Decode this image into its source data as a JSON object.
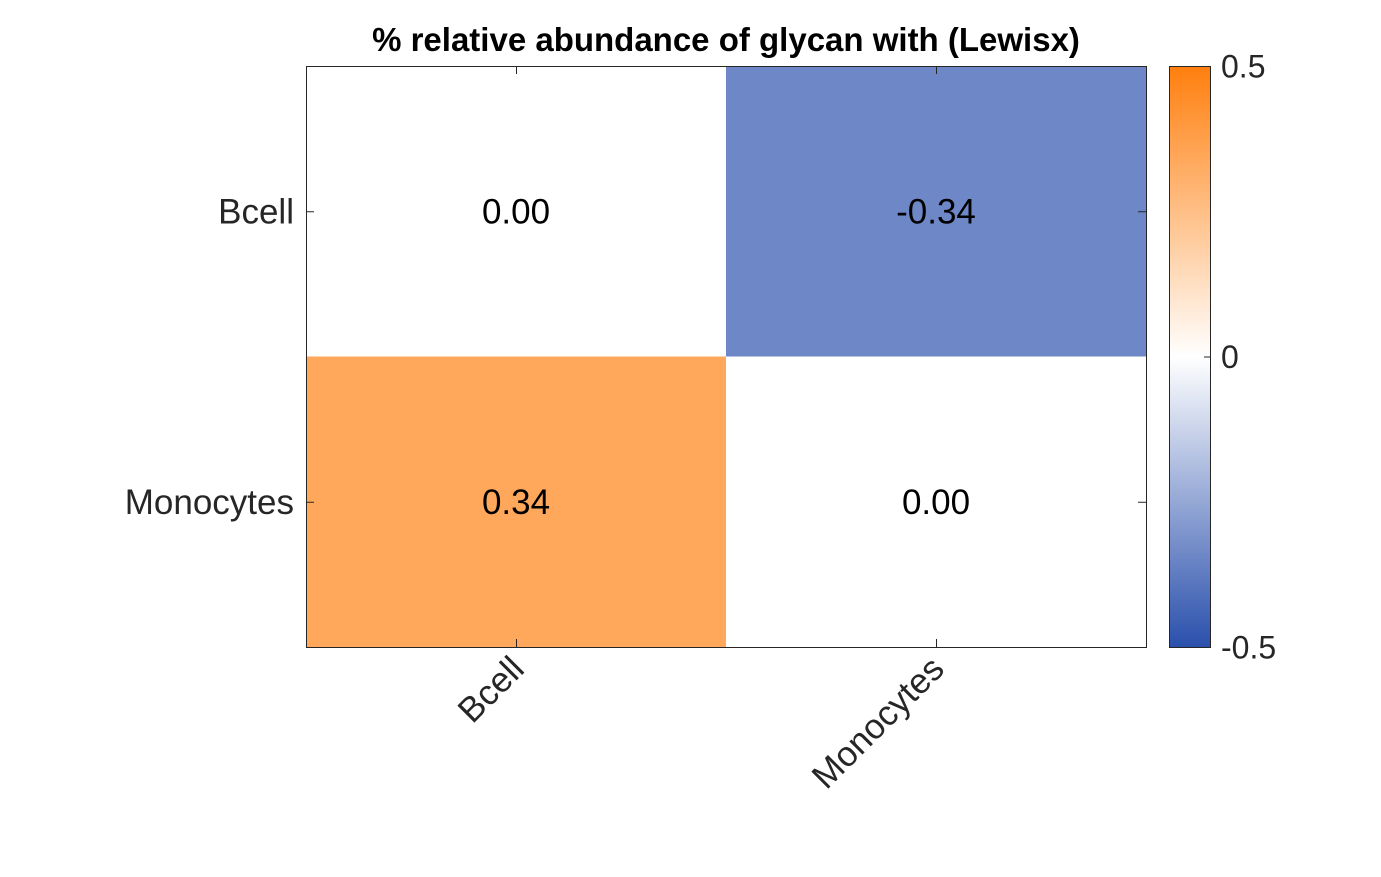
{
  "chart_data": {
    "type": "heatmap",
    "title": "% relative abundance of glycan with (Lewisx)",
    "x_categories": [
      "Bcell",
      "Monocytes"
    ],
    "y_categories": [
      "Bcell",
      "Monocytes"
    ],
    "values": [
      [
        0.0,
        -0.34
      ],
      [
        0.34,
        0.0
      ]
    ],
    "cell_labels": [
      [
        "0.00",
        "-0.34"
      ],
      [
        "0.34",
        "0.00"
      ]
    ],
    "colorbar": {
      "min": -0.5,
      "max": 0.5,
      "tick_labels": [
        "0.5",
        "0",
        "-0.5"
      ],
      "colors": {
        "min": "#2a50ac",
        "mid": "#ffffff",
        "max": "#ff7f0e"
      }
    },
    "xlabel": "",
    "ylabel": ""
  }
}
